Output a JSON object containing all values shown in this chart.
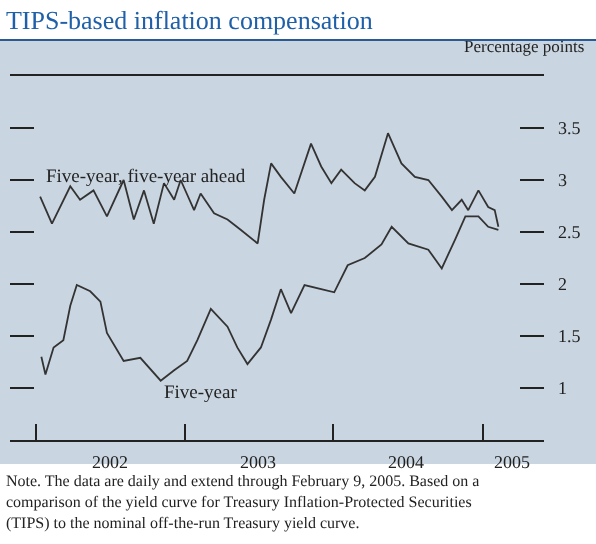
{
  "chart_data": {
    "type": "line",
    "title": "TIPS-based inflation compensation",
    "ylabel": "Percentage points",
    "annotations": [
      "Note. The data are daily and extend through February 9, 2005. Based on a comparison of the yield curve for Treasury Inflation-Protected Securities (TIPS) to the nominal off-the-run Treasury yield curve."
    ],
    "series": [
      {
        "name": "Five-year, five-year ahead",
        "color": "#333333",
        "x": [
          "2002-01-11",
          "2002-02-09",
          "2002-03-26",
          "2002-04-19",
          "2002-05-22",
          "2002-06-24",
          "2002-08-04",
          "2002-08-29",
          "2002-09-23",
          "2002-10-17",
          "2002-11-11",
          "2002-12-06",
          "2002-12-22",
          "2003-01-24",
          "2003-02-09",
          "2003-03-14",
          "2003-04-16",
          "2003-05-19",
          "2003-06-29",
          "2003-07-15",
          "2003-08-01",
          "2003-08-25",
          "2003-09-27",
          "2003-11-07",
          "2003-12-02",
          "2003-12-27",
          "2004-01-20",
          "2004-02-22",
          "2004-03-18",
          "2004-04-12",
          "2004-05-14",
          "2004-06-16",
          "2004-07-19",
          "2004-08-21",
          "2004-09-23",
          "2004-10-18",
          "2004-11-11",
          "2004-11-27",
          "2004-12-22",
          "2005-01-15",
          "2005-01-31",
          "2005-02-09"
        ],
        "values": [
          2.84,
          2.58,
          2.94,
          2.81,
          2.9,
          2.65,
          3.0,
          2.62,
          2.9,
          2.58,
          2.97,
          2.81,
          3.0,
          2.71,
          2.87,
          2.68,
          2.62,
          2.52,
          2.39,
          2.81,
          3.16,
          3.03,
          2.87,
          3.35,
          3.13,
          2.97,
          3.1,
          2.97,
          2.9,
          3.03,
          3.45,
          3.16,
          3.03,
          3.0,
          2.84,
          2.71,
          2.81,
          2.71,
          2.9,
          2.74,
          2.71,
          2.55
        ]
      },
      {
        "name": "Five-year",
        "color": "#333333",
        "x": [
          "2002-01-14",
          "2002-01-24",
          "2002-02-13",
          "2002-03-09",
          "2002-03-26",
          "2002-04-11",
          "2002-05-14",
          "2002-06-08",
          "2002-06-24",
          "2002-08-04",
          "2002-09-14",
          "2002-11-03",
          "2002-12-06",
          "2003-01-07",
          "2003-02-01",
          "2003-03-06",
          "2003-04-16",
          "2003-05-10",
          "2003-06-04",
          "2003-07-07",
          "2003-08-01",
          "2003-08-25",
          "2003-09-19",
          "2003-10-22",
          "2003-12-02",
          "2004-01-03",
          "2004-02-05",
          "2004-03-18",
          "2004-04-28",
          "2004-05-23",
          "2004-07-03",
          "2004-08-21",
          "2004-09-23",
          "2004-10-26",
          "2004-11-20",
          "2004-12-22",
          "2005-01-15",
          "2005-02-09"
        ],
        "values": [
          1.3,
          1.13,
          1.39,
          1.46,
          1.79,
          1.99,
          1.93,
          1.83,
          1.53,
          1.26,
          1.29,
          1.07,
          1.17,
          1.26,
          1.46,
          1.76,
          1.59,
          1.39,
          1.23,
          1.39,
          1.66,
          1.95,
          1.72,
          1.99,
          1.95,
          1.92,
          2.18,
          2.25,
          2.38,
          2.55,
          2.39,
          2.33,
          2.15,
          2.43,
          2.65,
          2.65,
          2.55,
          2.52
        ]
      }
    ],
    "xlim": [
      "2001-10-29",
      "2005-06-01"
    ],
    "xticks": [
      {
        "value": "2002-01-01",
        "label": null
      },
      {
        "value": "2002-07-02",
        "label": "2002"
      },
      {
        "value": "2003-01-01",
        "label": null
      },
      {
        "value": "2003-07-02",
        "label": "2003"
      },
      {
        "value": "2004-01-01",
        "label": null
      },
      {
        "value": "2004-07-02",
        "label": "2004"
      },
      {
        "value": "2005-01-01",
        "label": null
      },
      {
        "value": "2005-03-17",
        "label": "2005"
      }
    ],
    "ylim": [
      0.5,
      4.0
    ],
    "yticks": [
      1,
      1.5,
      2,
      2.5,
      3,
      3.5
    ],
    "grid": false,
    "legend": false,
    "marker": "none",
    "line_style": "solid"
  }
}
